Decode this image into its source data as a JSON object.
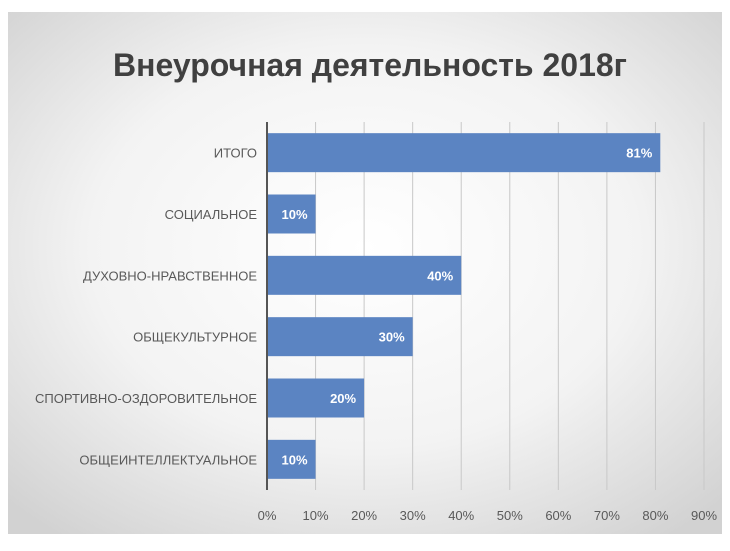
{
  "chart_data": {
    "type": "bar",
    "orientation": "horizontal",
    "title": "Внеурочная деятельность 2018г",
    "categories": [
      "ИТОГО",
      "СОЦИАЛЬНОЕ",
      "ДУХОВНО-НРАВСТВЕННОЕ",
      "ОБЩЕКУЛЬТУРНОЕ",
      "СПОРТИВНО-ОЗДОРОВИТЕЛЬНОЕ",
      "ОБЩЕИНТЕЛЛЕКТУАЛЬНОЕ"
    ],
    "values": [
      81,
      10,
      40,
      30,
      20,
      10
    ],
    "data_labels": [
      "81%",
      "10%",
      "40%",
      "30%",
      "20%",
      "10%"
    ],
    "xlim": [
      0,
      90
    ],
    "x_ticks": [
      0,
      10,
      20,
      30,
      40,
      50,
      60,
      70,
      80,
      90
    ],
    "x_tick_labels": [
      "0%",
      "10%",
      "20%",
      "30%",
      "40%",
      "50%",
      "60%",
      "70%",
      "80%",
      "90%"
    ],
    "grid": true,
    "legend": "none",
    "colors": {
      "bar": "#5b84c2",
      "bar_label": "#ffffff",
      "title": "#404040",
      "axis_text": "#595959",
      "grid": "#c8c8c8",
      "axis_line": "#555555",
      "background_center": "#ffffff",
      "background_edge": "#d2d2d2"
    }
  }
}
